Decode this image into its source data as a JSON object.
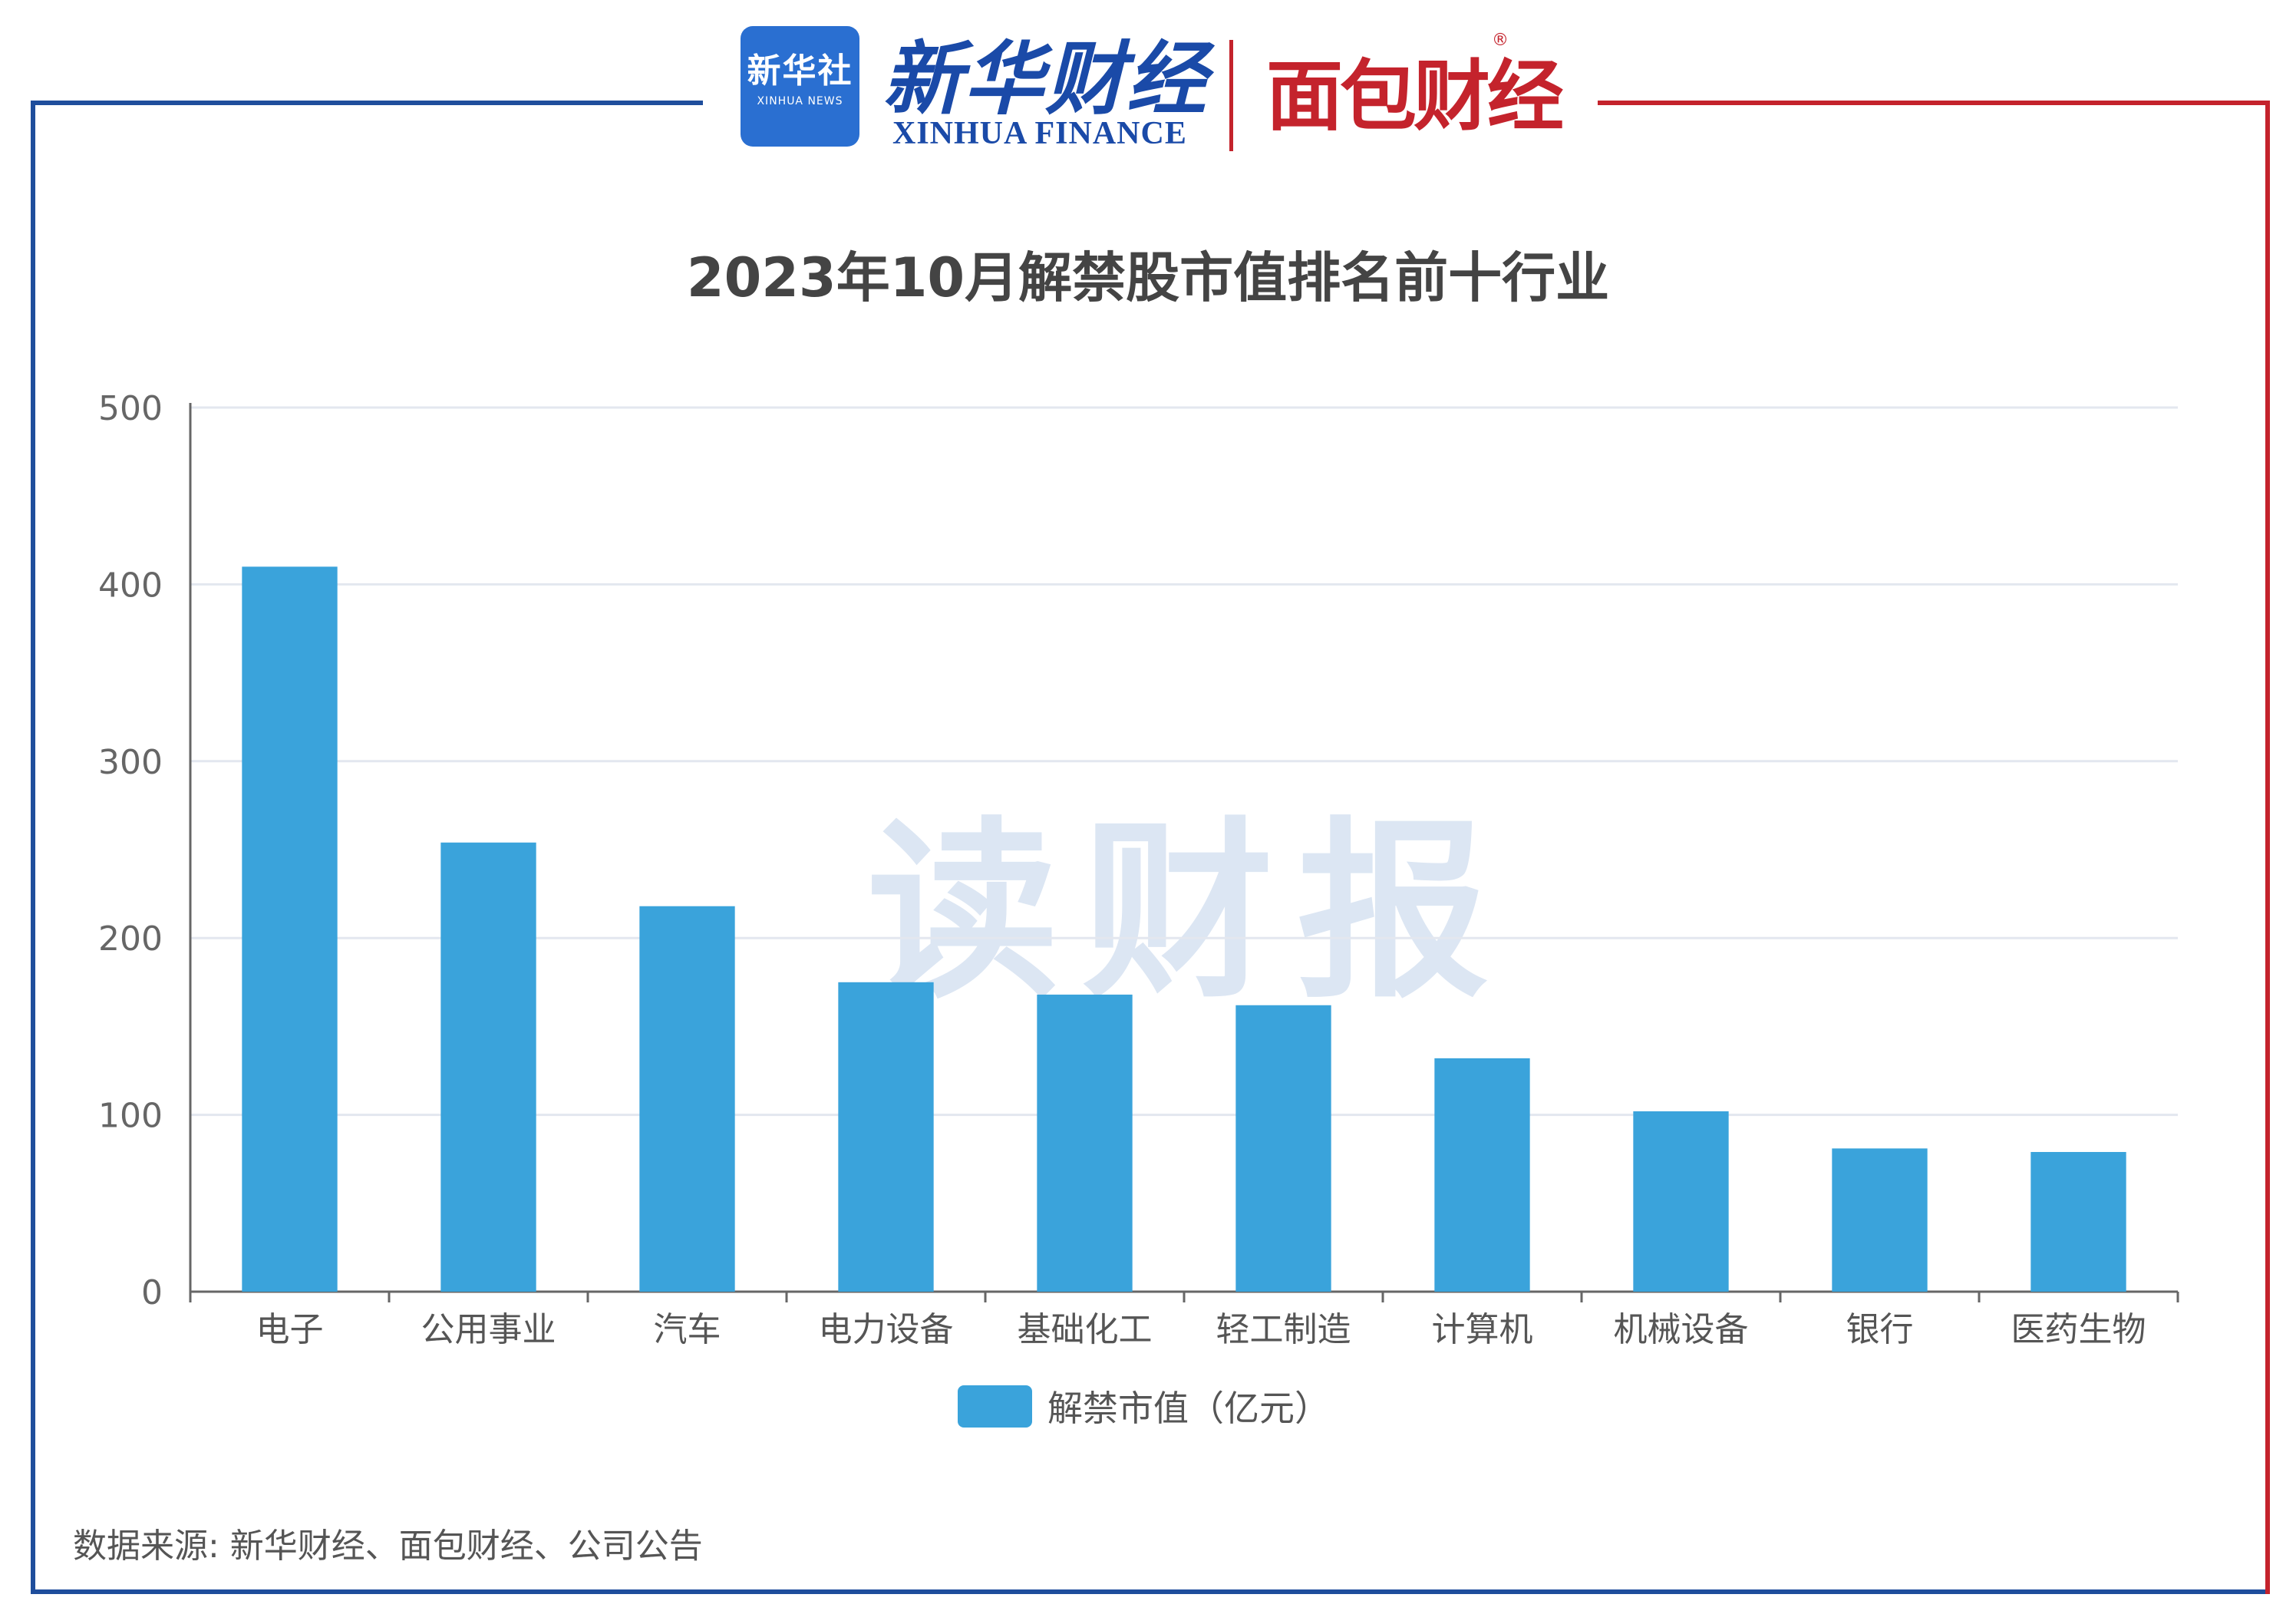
{
  "header": {
    "xinhua_badge_cn": "新华社",
    "xinhua_badge_en": "XINHUA NEWS",
    "xinhua_finance_cn": "新华财经",
    "xinhua_finance_en": "XINHUA FINANCE",
    "mianbao_logo": "面包财经",
    "registered_mark": "®"
  },
  "watermark": "读财报",
  "source_text": "数据来源: 新华财经、面包财经、公司公告",
  "colors": {
    "bar": "#3aa3db",
    "frame_left": "#1f4e9c",
    "frame_right": "#c4232c",
    "grid": "#e3e7ef"
  },
  "chart_data": {
    "type": "bar",
    "title": "2023年10月解禁股市值排名前十行业",
    "categories": [
      "电子",
      "公用事业",
      "汽车",
      "电力设备",
      "基础化工",
      "轻工制造",
      "计算机",
      "机械设备",
      "银行",
      "医药生物"
    ],
    "series": [
      {
        "name": "解禁市值（亿元）",
        "values": [
          410,
          254,
          218,
          175,
          168,
          162,
          132,
          102,
          81,
          79
        ]
      }
    ],
    "ylim": [
      0,
      500
    ],
    "yticks": [
      0,
      100,
      200,
      300,
      400,
      500
    ],
    "grid": true,
    "legend_position": "bottom"
  }
}
